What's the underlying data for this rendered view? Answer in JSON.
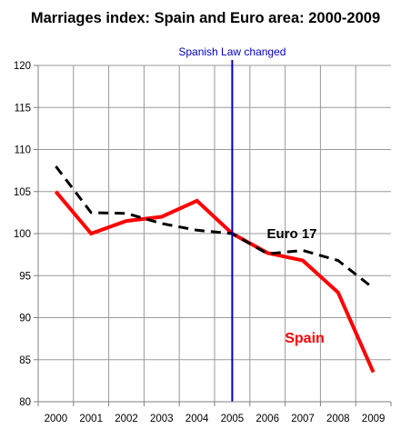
{
  "chart_data": {
    "type": "line",
    "title": "Marriages index: Spain and Euro area: 2000-2009",
    "categories": [
      "2000",
      "2001",
      "2002",
      "2003",
      "2004",
      "2005",
      "2006",
      "2007",
      "2008",
      "2009"
    ],
    "series": [
      {
        "name": "Spain",
        "color": "#ff0000",
        "style": "solid",
        "values": [
          105.0,
          100.0,
          101.5,
          102.0,
          103.9,
          100.0,
          97.7,
          96.8,
          93.0,
          83.5
        ]
      },
      {
        "name": "Euro 17",
        "color": "#000000",
        "style": "dashed",
        "values": [
          108.0,
          102.5,
          102.4,
          101.2,
          100.4,
          100.0,
          97.6,
          98.0,
          96.8,
          93.5
        ]
      }
    ],
    "yticks": [
      80,
      85,
      90,
      95,
      100,
      105,
      110,
      115,
      120
    ],
    "ylim": [
      80,
      120
    ],
    "grid": true,
    "annotations": {
      "vline_category": "2005",
      "vline_label": "Spanish Law changed",
      "vline_color": "#0000c0"
    }
  }
}
